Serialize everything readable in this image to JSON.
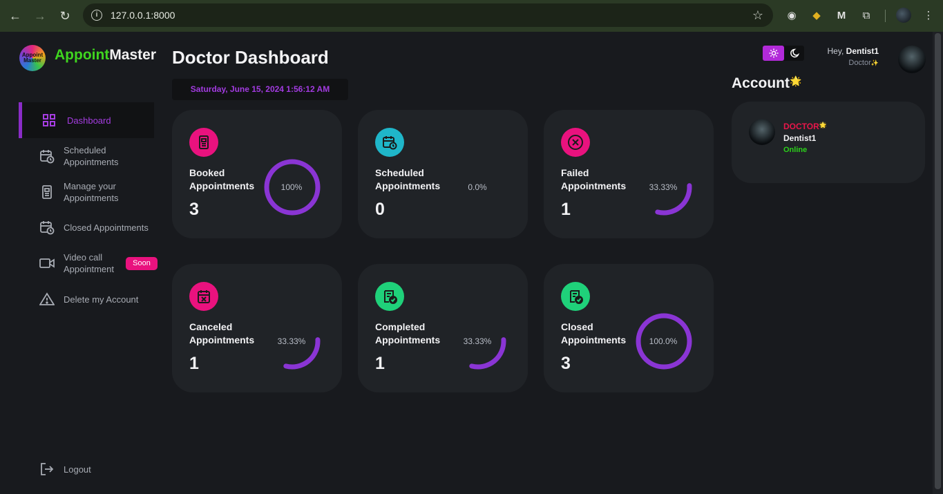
{
  "browser": {
    "url": "127.0.0.1:8000"
  },
  "brand": {
    "part1": "Appoint",
    "part2": "Master",
    "logo_text": "Appoint Master"
  },
  "sidebar": {
    "items": [
      {
        "label": "Dashboard",
        "icon": "grid-icon"
      },
      {
        "label": "Scheduled Appointments",
        "icon": "calendar-clock-icon"
      },
      {
        "label": "Manage your Appointments",
        "icon": "document-icon"
      },
      {
        "label": "Closed Appointments",
        "icon": "calendar-clock-icon"
      },
      {
        "label": "Video call Appointment",
        "icon": "video-icon",
        "badge": "Soon"
      },
      {
        "label": "Delete my Account",
        "icon": "warning-icon"
      }
    ],
    "logout": "Logout"
  },
  "main": {
    "title": "Doctor Dashboard",
    "datetime": "Saturday, June 15, 2024 1:56:12 AM"
  },
  "cards": [
    {
      "label": "Booked Appointments",
      "value": "3",
      "percent_text": "100%",
      "fraction": 1.0,
      "color": "#e9127e"
    },
    {
      "label": "Scheduled Appointments",
      "value": "0",
      "percent_text": "0.0%",
      "fraction": 0.0,
      "color": "#1fb6c9"
    },
    {
      "label": "Failed Appointments",
      "value": "1",
      "percent_text": "33.33%",
      "fraction": 0.3333,
      "color": "#e9127e"
    },
    {
      "label": "Canceled Appointments",
      "value": "1",
      "percent_text": "33.33%",
      "fraction": 0.3333,
      "color": "#e9127e"
    },
    {
      "label": "Completed Appointments",
      "value": "1",
      "percent_text": "33.33%",
      "fraction": 0.3333,
      "color": "#1fd17a"
    },
    {
      "label": "Closed Appointments",
      "value": "3",
      "percent_text": "100.0%",
      "fraction": 1.0,
      "color": "#1fd17a"
    }
  ],
  "header": {
    "greeting": "Hey,",
    "username": "Dentist1",
    "role": "Doctor"
  },
  "account": {
    "title": "Account",
    "role": "DOCTOR",
    "name": "Dentist1",
    "status": "Online"
  },
  "colors": {
    "accent": "#8a2cc7",
    "ring": "#8a35d4",
    "pink": "#e9127e",
    "online": "#2bd21a",
    "doctor": "#e8164a"
  }
}
